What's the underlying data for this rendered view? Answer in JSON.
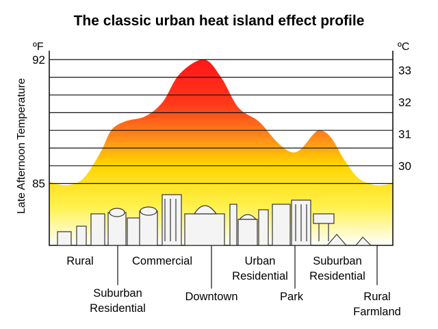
{
  "chart_data": {
    "type": "area",
    "title": "The classic urban heat island effect profile",
    "ylabel": "Late Afternoon Temperature",
    "y_unit_left": "ºF",
    "y_unit_right": "ºC",
    "ylim_f": [
      81.5,
      92.5
    ],
    "left_ticks": [
      {
        "label": "92",
        "value": 92
      },
      {
        "label": "85",
        "value": 85
      }
    ],
    "right_ticks": [
      {
        "label": "33",
        "value": 33
      },
      {
        "label": "32",
        "value": 32
      },
      {
        "label": "31",
        "value": 31
      },
      {
        "label": "30",
        "value": 30
      }
    ],
    "gridlines_f": [
      92,
      91,
      90,
      89,
      88,
      87,
      86,
      85
    ],
    "zones": [
      {
        "label": "Rural",
        "lines": [
          "Rural"
        ],
        "temp_f": 85.0
      },
      {
        "label": "Suburban Residential",
        "lines": [
          "Suburban",
          "Residential"
        ],
        "temp_f": 88.5
      },
      {
        "label": "Commercial",
        "lines": [
          "Commercial"
        ],
        "temp_f": 89.0
      },
      {
        "label": "Downtown",
        "lines": [
          "Downtown"
        ],
        "temp_f": 92.0
      },
      {
        "label": "Urban Residential",
        "lines": [
          "Urban",
          "Residential"
        ],
        "temp_f": 88.0
      },
      {
        "label": "Park",
        "lines": [
          "Park"
        ],
        "temp_f": 86.8
      },
      {
        "label": "Suburban Residential",
        "lines": [
          "Suburban",
          "Residential"
        ],
        "temp_f": 88.2
      },
      {
        "label": "Rural Farmland",
        "lines": [
          "Rural",
          "Farmland"
        ],
        "temp_f": 85.0
      }
    ],
    "profile": [
      {
        "x": 0.0,
        "f": 85.1
      },
      {
        "x": 0.05,
        "f": 84.9
      },
      {
        "x": 0.1,
        "f": 85.3
      },
      {
        "x": 0.15,
        "f": 86.8
      },
      {
        "x": 0.18,
        "f": 88.0
      },
      {
        "x": 0.22,
        "f": 88.5
      },
      {
        "x": 0.28,
        "f": 88.8
      },
      {
        "x": 0.33,
        "f": 89.6
      },
      {
        "x": 0.38,
        "f": 91.2
      },
      {
        "x": 0.45,
        "f": 92.0
      },
      {
        "x": 0.5,
        "f": 91.0
      },
      {
        "x": 0.55,
        "f": 89.3
      },
      {
        "x": 0.61,
        "f": 88.5
      },
      {
        "x": 0.66,
        "f": 87.4
      },
      {
        "x": 0.7,
        "f": 86.8
      },
      {
        "x": 0.73,
        "f": 86.9
      },
      {
        "x": 0.77,
        "f": 87.8
      },
      {
        "x": 0.79,
        "f": 88.0
      },
      {
        "x": 0.82,
        "f": 87.6
      },
      {
        "x": 0.86,
        "f": 86.3
      },
      {
        "x": 0.9,
        "f": 85.3
      },
      {
        "x": 0.95,
        "f": 84.9
      },
      {
        "x": 1.0,
        "f": 85.0
      }
    ],
    "grid": true,
    "colors": {
      "hot": "#ff1a1a",
      "warm": "#ff7a1a",
      "mild": "#ffd400",
      "cool": "#fff2a0",
      "grid": "#111111"
    }
  }
}
